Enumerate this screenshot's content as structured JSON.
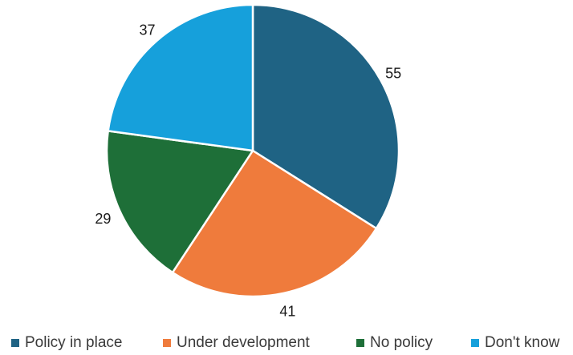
{
  "chart_data": {
    "type": "pie",
    "categories": [
      "Policy in place",
      "Under development",
      "No policy",
      "Don't know"
    ],
    "values": [
      55,
      41,
      29,
      37
    ],
    "colors": [
      "#1f6384",
      "#ef7b3c",
      "#1e6f38",
      "#16a0db"
    ],
    "data_labels": [
      "55",
      "41",
      "29",
      "37"
    ],
    "legend_position": "bottom",
    "start_angle": "12 o'clock, clockwise"
  }
}
